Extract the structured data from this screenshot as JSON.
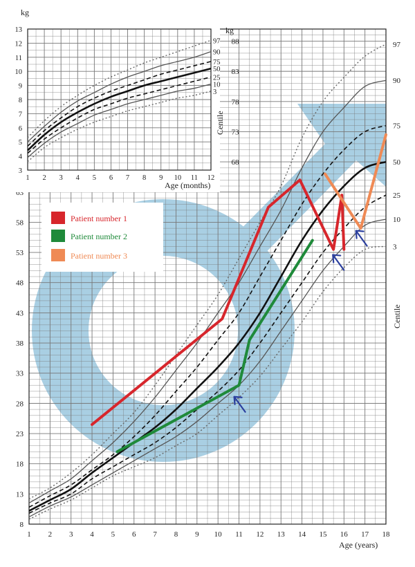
{
  "chart_data": {
    "type": "line",
    "main": {
      "y_unit": "kg",
      "xlabel": "Age (years)",
      "ylabel": "Centile",
      "centile_title": "Centile",
      "x_ticks": [
        "1",
        "2",
        "3",
        "4",
        "5",
        "6",
        "7",
        "8",
        "9",
        "10",
        "11",
        "12",
        "13",
        "14",
        "15",
        "16",
        "17",
        "18"
      ],
      "y_ticks": [
        "8",
        "13",
        "18",
        "23",
        "28",
        "33",
        "38",
        "43",
        "48",
        "53",
        "58",
        "63"
      ],
      "y_ticks_upper": [
        "68",
        "73",
        "78",
        "83",
        "88"
      ],
      "xlim": [
        1,
        18
      ],
      "ylim": [
        8,
        90
      ],
      "centile_labels": [
        "97",
        "90",
        "75",
        "50",
        "25",
        "10",
        "3"
      ],
      "centiles": [
        {
          "name": "97",
          "style": "dotted",
          "points": [
            [
              1,
              12.2
            ],
            [
              2,
              14
            ],
            [
              3,
              16.5
            ],
            [
              4,
              19.5
            ],
            [
              5,
              23
            ],
            [
              6,
              26.5
            ],
            [
              7,
              31
            ],
            [
              8,
              36
            ],
            [
              9,
              41
            ],
            [
              10,
              46
            ],
            [
              11,
              52
            ],
            [
              12,
              58
            ],
            [
              13,
              64
            ],
            [
              14,
              72
            ],
            [
              15,
              78
            ],
            [
              16,
              82
            ],
            [
              17,
              85.5
            ],
            [
              18,
              87.5
            ]
          ]
        },
        {
          "name": "90",
          "style": "solid",
          "points": [
            [
              1,
              11.5
            ],
            [
              2,
              13.5
            ],
            [
              3,
              15.5
            ],
            [
              4,
              18.5
            ],
            [
              5,
              21.5
            ],
            [
              6,
              25
            ],
            [
              7,
              29
            ],
            [
              8,
              33.5
            ],
            [
              9,
              38
            ],
            [
              10,
              43
            ],
            [
              11,
              48
            ],
            [
              12,
              54
            ],
            [
              13,
              60
            ],
            [
              14,
              67
            ],
            [
              15,
              73
            ],
            [
              16,
              77
            ],
            [
              17,
              80.5
            ],
            [
              18,
              81.5
            ]
          ]
        },
        {
          "name": "75",
          "style": "dashed",
          "points": [
            [
              1,
              10.8
            ],
            [
              2,
              12.7
            ],
            [
              3,
              14.5
            ],
            [
              4,
              17
            ],
            [
              5,
              19.5
            ],
            [
              6,
              22.5
            ],
            [
              7,
              26
            ],
            [
              8,
              30
            ],
            [
              9,
              34
            ],
            [
              10,
              38.5
            ],
            [
              11,
              43
            ],
            [
              12,
              49
            ],
            [
              13,
              55
            ],
            [
              14,
              61
            ],
            [
              15,
              66
            ],
            [
              16,
              70
            ],
            [
              17,
              73
            ],
            [
              18,
              74
            ]
          ]
        },
        {
          "name": "50",
          "style": "bold",
          "points": [
            [
              1,
              10.2
            ],
            [
              2,
              12
            ],
            [
              3,
              13.8
            ],
            [
              4,
              16.5
            ],
            [
              5,
              19
            ],
            [
              6,
              21.5
            ],
            [
              7,
              24
            ],
            [
              8,
              27
            ],
            [
              9,
              30.5
            ],
            [
              10,
              34
            ],
            [
              11,
              38
            ],
            [
              12,
              43
            ],
            [
              13,
              49
            ],
            [
              14,
              55
            ],
            [
              15,
              60
            ],
            [
              16,
              64
            ],
            [
              17,
              67
            ],
            [
              18,
              68
            ]
          ]
        },
        {
          "name": "25",
          "style": "dashed",
          "points": [
            [
              1,
              9.8
            ],
            [
              2,
              11.5
            ],
            [
              3,
              13
            ],
            [
              4,
              15.5
            ],
            [
              5,
              17.5
            ],
            [
              6,
              19.5
            ],
            [
              7,
              21.5
            ],
            [
              8,
              24
            ],
            [
              9,
              27
            ],
            [
              10,
              30
            ],
            [
              11,
              33.5
            ],
            [
              12,
              38
            ],
            [
              13,
              43
            ],
            [
              14,
              48
            ],
            [
              15,
              53
            ],
            [
              16,
              57
            ],
            [
              17,
              60.5
            ],
            [
              18,
              62.5
            ]
          ]
        },
        {
          "name": "10",
          "style": "solid",
          "points": [
            [
              1,
              9.2
            ],
            [
              2,
              11
            ],
            [
              3,
              12.5
            ],
            [
              4,
              14.5
            ],
            [
              5,
              16.5
            ],
            [
              6,
              18.5
            ],
            [
              7,
              20.5
            ],
            [
              8,
              22.5
            ],
            [
              9,
              25
            ],
            [
              10,
              28
            ],
            [
              11,
              31
            ],
            [
              12,
              35
            ],
            [
              13,
              40
            ],
            [
              14,
              45
            ],
            [
              15,
              50
            ],
            [
              16,
              54
            ],
            [
              17,
              57.5
            ],
            [
              18,
              58.5
            ]
          ]
        },
        {
          "name": "3",
          "style": "dotted",
          "points": [
            [
              1,
              8.8
            ],
            [
              2,
              10.5
            ],
            [
              3,
              12
            ],
            [
              4,
              14
            ],
            [
              5,
              16
            ],
            [
              6,
              17.5
            ],
            [
              7,
              19
            ],
            [
              8,
              21
            ],
            [
              9,
              23
            ],
            [
              10,
              26
            ],
            [
              11,
              29
            ],
            [
              12,
              32.5
            ],
            [
              13,
              37
            ],
            [
              14,
              41.5
            ],
            [
              15,
              46.5
            ],
            [
              16,
              50.5
            ],
            [
              17,
              53.5
            ],
            [
              18,
              54
            ]
          ]
        }
      ],
      "series": [
        {
          "name": "Patient number 1",
          "color": "#d7262c",
          "points": [
            [
              4,
              24.5
            ],
            [
              10.2,
              42
            ],
            [
              12.4,
              60.5
            ],
            [
              13.9,
              65
            ],
            [
              15.5,
              53.5
            ],
            [
              15.9,
              62.5
            ],
            [
              16,
              53.5
            ]
          ]
        },
        {
          "name": "Patient number 2",
          "color": "#1f8a3a",
          "points": [
            [
              5.2,
              20
            ],
            [
              11,
              31
            ],
            [
              11.5,
              38.5
            ],
            [
              14.5,
              55
            ]
          ]
        },
        {
          "name": "Patient number 3",
          "color": "#ef8a55",
          "points": [
            [
              15.1,
              66
            ],
            [
              16.8,
              57
            ],
            [
              18,
              72.5
            ]
          ]
        }
      ],
      "arrows": [
        {
          "x": 11.1,
          "y": 27.5
        },
        {
          "x": 15.8,
          "y": 51
        },
        {
          "x": 16.9,
          "y": 55
        }
      ]
    },
    "inset": {
      "y_unit": "kg",
      "xlabel": "Age (months)",
      "x_ticks": [
        "1",
        "2",
        "3",
        "4",
        "5",
        "6",
        "7",
        "8",
        "9",
        "10",
        "11",
        "12"
      ],
      "y_ticks": [
        "3",
        "4",
        "5",
        "6",
        "7",
        "8",
        "9",
        "10",
        "11",
        "12",
        "13"
      ],
      "xlim": [
        1,
        12
      ],
      "ylim": [
        3,
        13
      ],
      "centile_labels": [
        "97",
        "90",
        "75",
        "50",
        "25",
        "10",
        "3"
      ],
      "centiles": [
        {
          "name": "97",
          "style": "dotted",
          "points": [
            [
              1,
              5.3
            ],
            [
              2,
              6.5
            ],
            [
              3,
              7.5
            ],
            [
              4,
              8.3
            ],
            [
              5,
              9
            ],
            [
              6,
              9.6
            ],
            [
              7,
              10.1
            ],
            [
              8,
              10.6
            ],
            [
              9,
              11
            ],
            [
              10,
              11.4
            ],
            [
              11,
              11.8
            ],
            [
              12,
              12.2
            ]
          ]
        },
        {
          "name": "90",
          "style": "solid",
          "points": [
            [
              1,
              5
            ],
            [
              2,
              6.1
            ],
            [
              3,
              7.1
            ],
            [
              4,
              7.9
            ],
            [
              5,
              8.5
            ],
            [
              6,
              9.1
            ],
            [
              7,
              9.6
            ],
            [
              8,
              10
            ],
            [
              9,
              10.4
            ],
            [
              10,
              10.7
            ],
            [
              11,
              11
            ],
            [
              12,
              11.4
            ]
          ]
        },
        {
          "name": "75",
          "style": "dashed",
          "points": [
            [
              1,
              4.7
            ],
            [
              2,
              5.8
            ],
            [
              3,
              6.7
            ],
            [
              4,
              7.5
            ],
            [
              5,
              8.1
            ],
            [
              6,
              8.6
            ],
            [
              7,
              9
            ],
            [
              8,
              9.4
            ],
            [
              9,
              9.8
            ],
            [
              10,
              10.1
            ],
            [
              11,
              10.4
            ],
            [
              12,
              10.7
            ]
          ]
        },
        {
          "name": "50",
          "style": "bold",
          "points": [
            [
              1,
              4.4
            ],
            [
              2,
              5.5
            ],
            [
              3,
              6.4
            ],
            [
              4,
              7.1
            ],
            [
              5,
              7.7
            ],
            [
              6,
              8.2
            ],
            [
              7,
              8.6
            ],
            [
              8,
              9
            ],
            [
              9,
              9.3
            ],
            [
              10,
              9.6
            ],
            [
              11,
              9.9
            ],
            [
              12,
              10.2
            ]
          ]
        },
        {
          "name": "25",
          "style": "dashed",
          "points": [
            [
              1,
              4.2
            ],
            [
              2,
              5.2
            ],
            [
              3,
              6
            ],
            [
              4,
              6.7
            ],
            [
              5,
              7.3
            ],
            [
              6,
              7.7
            ],
            [
              7,
              8.1
            ],
            [
              8,
              8.4
            ],
            [
              9,
              8.7
            ],
            [
              10,
              9
            ],
            [
              11,
              9.3
            ],
            [
              12,
              9.6
            ]
          ]
        },
        {
          "name": "10",
          "style": "solid",
          "points": [
            [
              1,
              3.9
            ],
            [
              2,
              4.9
            ],
            [
              3,
              5.7
            ],
            [
              4,
              6.3
            ],
            [
              5,
              6.9
            ],
            [
              6,
              7.3
            ],
            [
              7,
              7.7
            ],
            [
              8,
              8
            ],
            [
              9,
              8.3
            ],
            [
              10,
              8.6
            ],
            [
              11,
              8.8
            ],
            [
              12,
              9.1
            ]
          ]
        },
        {
          "name": "3",
          "style": "dotted",
          "points": [
            [
              1,
              3.6
            ],
            [
              2,
              4.6
            ],
            [
              3,
              5.3
            ],
            [
              4,
              5.9
            ],
            [
              5,
              6.4
            ],
            [
              6,
              6.8
            ],
            [
              7,
              7.2
            ],
            [
              8,
              7.5
            ],
            [
              9,
              7.8
            ],
            [
              10,
              8.1
            ],
            [
              11,
              8.3
            ],
            [
              12,
              8.6
            ]
          ]
        }
      ]
    },
    "colors": {
      "background_symbol": "#a9cfe3",
      "grid": "#777777",
      "centile_line": "#555555",
      "centile_bold": "#111111",
      "arrow": "#2b3f9e"
    },
    "legend": {
      "placement": "top-left"
    }
  }
}
